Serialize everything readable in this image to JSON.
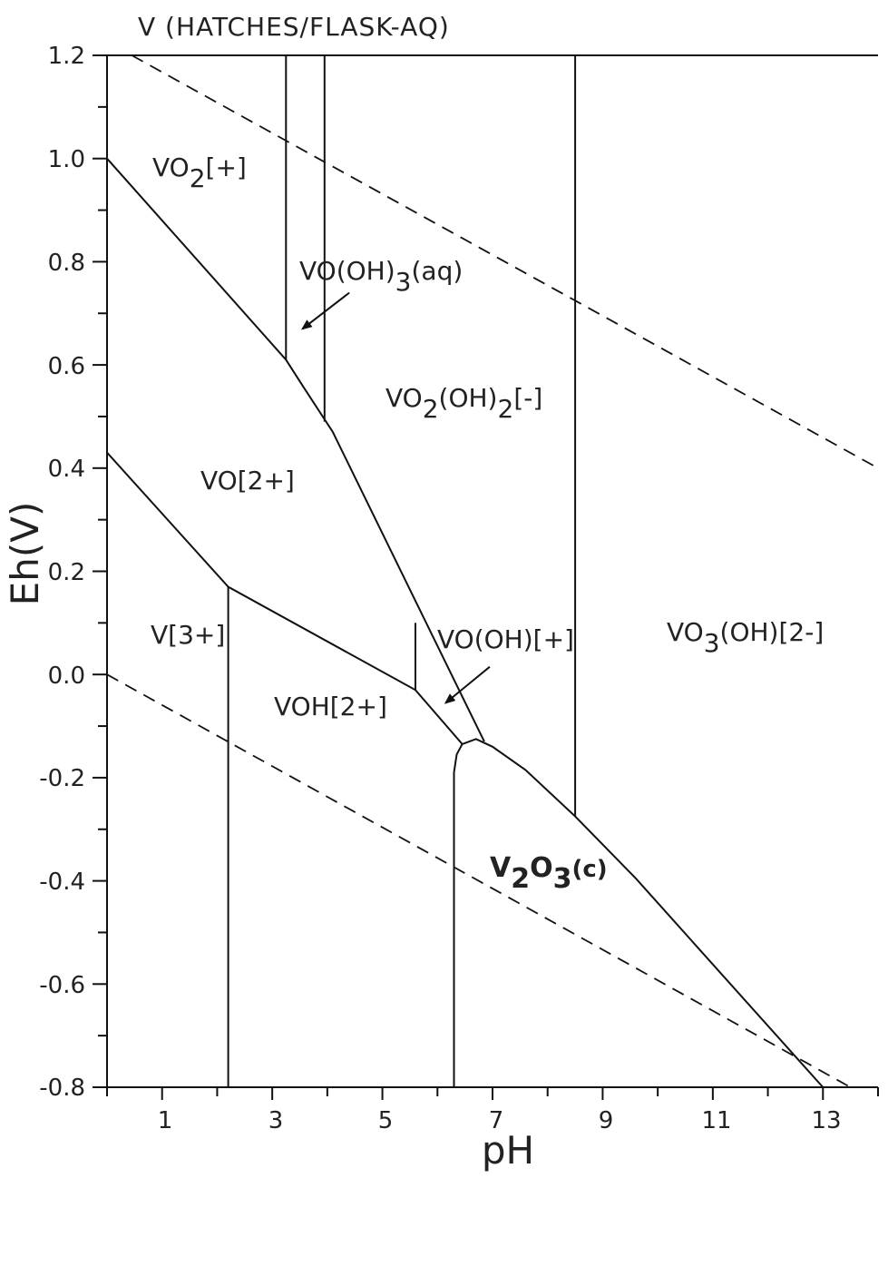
{
  "title": "V (HATCHES/FLASK-AQ)",
  "chart_data": {
    "type": "diagram",
    "xlabel": "pH",
    "ylabel": "Eh(V)",
    "xlim": [
      0,
      14
    ],
    "ylim": [
      -0.8,
      1.2
    ],
    "x_tick_labels": [
      "1",
      "3",
      "5",
      "7",
      "9",
      "11",
      "13"
    ],
    "y_tick_labels": [
      "1.2",
      "1.0",
      "0.8",
      "0.6",
      "0.4",
      "0.2",
      "0.0",
      "-0.2",
      "-0.4",
      "-0.6",
      "-0.8"
    ],
    "regions": [
      {
        "main": "VO",
        "sub": "2",
        "tail": "[+]"
      },
      {
        "main": "VO(OH)",
        "sub": "3",
        "tail": "(aq)"
      },
      {
        "main": "VO",
        "sub": "2",
        "tail": "(OH)",
        "sub2": "2",
        "tail2": "[-]"
      },
      {
        "main": "VO[2+]"
      },
      {
        "main": "V[3+]"
      },
      {
        "main": "VOH[2+]"
      },
      {
        "main": "VO(OH)[+]"
      },
      {
        "main": "VO",
        "sub": "3",
        "tail": "(OH)[2-]"
      },
      {
        "main": "V",
        "sub": "2",
        "tail": "O",
        "sub2": "3",
        "tail2": "(c)"
      }
    ],
    "boundaries": [
      [
        [
          0,
          1.0
        ],
        [
          3.25,
          0.61
        ],
        [
          3.55,
          0.56
        ],
        [
          4.1,
          0.47
        ],
        [
          6.85,
          -0.13
        ]
      ],
      [
        [
          0,
          0.43
        ],
        [
          2.2,
          0.17
        ],
        [
          5.6,
          -0.03
        ],
        [
          6.45,
          -0.135
        ]
      ],
      [
        [
          3.25,
          0.61
        ],
        [
          3.25,
          1.2
        ]
      ],
      [
        [
          3.95,
          0.49
        ],
        [
          3.95,
          1.2
        ]
      ],
      [
        [
          2.2,
          0.17
        ],
        [
          2.2,
          -0.8
        ]
      ],
      [
        [
          5.6,
          -0.03
        ],
        [
          5.6,
          0.1
        ]
      ],
      [
        [
          8.5,
          -0.275
        ],
        [
          8.5,
          1.2
        ]
      ],
      [
        [
          6.3,
          -0.8
        ],
        [
          6.3,
          -0.19
        ],
        [
          6.35,
          -0.155
        ],
        [
          6.45,
          -0.135
        ],
        [
          6.7,
          -0.125
        ],
        [
          7.0,
          -0.14
        ],
        [
          7.6,
          -0.185
        ],
        [
          8.5,
          -0.275
        ],
        [
          9.6,
          -0.395
        ],
        [
          13.0,
          -0.8
        ]
      ]
    ],
    "water_lines": [
      [
        [
          0.45,
          1.2
        ],
        [
          14,
          0.4
        ]
      ],
      [
        [
          0,
          0.0
        ],
        [
          13.5,
          -0.8
        ]
      ]
    ],
    "arrows": [
      {
        "from": [
          4.4,
          0.74
        ],
        "to": [
          3.55,
          0.67
        ]
      },
      {
        "from": [
          6.95,
          0.015
        ],
        "to": [
          6.15,
          -0.055
        ]
      }
    ]
  }
}
